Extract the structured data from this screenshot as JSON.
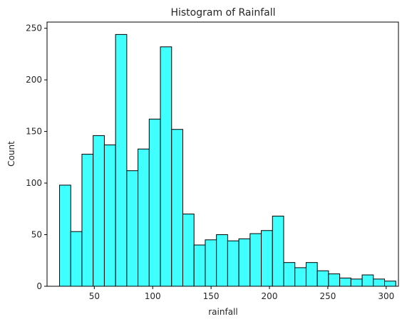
{
  "chart_data": {
    "type": "bar",
    "title": "Histogram of Rainfall",
    "xlabel": "rainfall",
    "ylabel": "Count",
    "xlim": [
      9.5,
      310.5
    ],
    "ylim": [
      0,
      256
    ],
    "xticks": [
      50,
      100,
      150,
      200,
      250,
      300
    ],
    "yticks": [
      0,
      50,
      100,
      150,
      200,
      250
    ],
    "bar_color": "#40ffff",
    "edge_color": "#000000",
    "grid": false,
    "bins": [
      {
        "x0": 20.2,
        "x1": 29.8,
        "count": 98
      },
      {
        "x0": 29.8,
        "x1": 39.4,
        "count": 53
      },
      {
        "x0": 39.4,
        "x1": 49.0,
        "count": 128
      },
      {
        "x0": 49.0,
        "x1": 58.6,
        "count": 146
      },
      {
        "x0": 58.6,
        "x1": 68.2,
        "count": 137
      },
      {
        "x0": 68.2,
        "x1": 77.8,
        "count": 244
      },
      {
        "x0": 77.8,
        "x1": 87.4,
        "count": 112
      },
      {
        "x0": 87.4,
        "x1": 97.0,
        "count": 133
      },
      {
        "x0": 97.0,
        "x1": 106.6,
        "count": 162
      },
      {
        "x0": 106.6,
        "x1": 116.2,
        "count": 232
      },
      {
        "x0": 116.2,
        "x1": 125.8,
        "count": 152
      },
      {
        "x0": 125.8,
        "x1": 135.4,
        "count": 70
      },
      {
        "x0": 135.4,
        "x1": 145.0,
        "count": 40
      },
      {
        "x0": 145.0,
        "x1": 154.6,
        "count": 45
      },
      {
        "x0": 154.6,
        "x1": 164.2,
        "count": 50
      },
      {
        "x0": 164.2,
        "x1": 173.8,
        "count": 44
      },
      {
        "x0": 173.8,
        "x1": 183.4,
        "count": 46
      },
      {
        "x0": 183.4,
        "x1": 193.0,
        "count": 51
      },
      {
        "x0": 193.0,
        "x1": 202.6,
        "count": 54
      },
      {
        "x0": 202.6,
        "x1": 212.2,
        "count": 68
      },
      {
        "x0": 212.2,
        "x1": 221.8,
        "count": 23
      },
      {
        "x0": 221.8,
        "x1": 231.4,
        "count": 18
      },
      {
        "x0": 231.4,
        "x1": 241.0,
        "count": 23
      },
      {
        "x0": 241.0,
        "x1": 250.6,
        "count": 15
      },
      {
        "x0": 250.6,
        "x1": 260.2,
        "count": 12
      },
      {
        "x0": 260.2,
        "x1": 269.8,
        "count": 8
      },
      {
        "x0": 269.8,
        "x1": 279.4,
        "count": 7
      },
      {
        "x0": 279.4,
        "x1": 289.0,
        "count": 11
      },
      {
        "x0": 289.0,
        "x1": 298.6,
        "count": 7
      },
      {
        "x0": 298.6,
        "x1": 308.2,
        "count": 5
      }
    ]
  }
}
